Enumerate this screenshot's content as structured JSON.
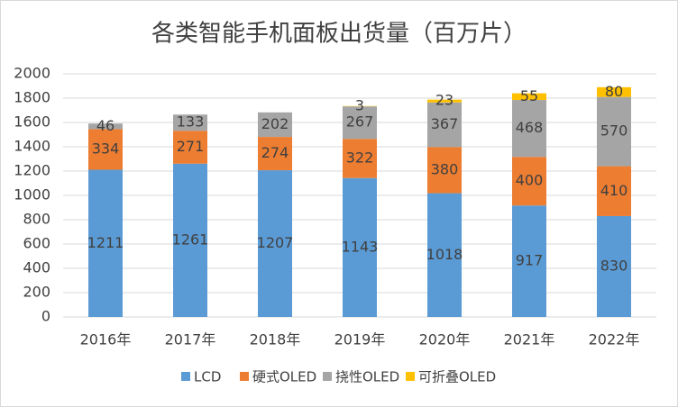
{
  "chart_data": {
    "type": "stacked_bar",
    "title": "各类智能手机面板出货量（百万片）",
    "categories": [
      "2016年",
      "2017年",
      "2018年",
      "2019年",
      "2020年",
      "2021年",
      "2022年"
    ],
    "series": [
      {
        "name": "LCD",
        "color": "#5b9bd5",
        "values": [
          1211,
          1261,
          1207,
          1143,
          1018,
          917,
          830
        ]
      },
      {
        "name": "硬式OLED",
        "color": "#ed7d31",
        "values": [
          334,
          271,
          274,
          322,
          380,
          400,
          410
        ]
      },
      {
        "name": "挠性OLED",
        "color": "#a5a5a5",
        "values": [
          46,
          133,
          202,
          267,
          367,
          468,
          570
        ]
      },
      {
        "name": "可折叠OLED",
        "color": "#ffc000",
        "values": [
          null,
          null,
          null,
          3,
          23,
          55,
          80
        ]
      }
    ],
    "ylim": [
      0,
      2000
    ],
    "yticks": [
      0,
      200,
      400,
      600,
      800,
      1000,
      1200,
      1400,
      1600,
      1800,
      2000
    ],
    "grid": true,
    "legend": "bottom"
  }
}
